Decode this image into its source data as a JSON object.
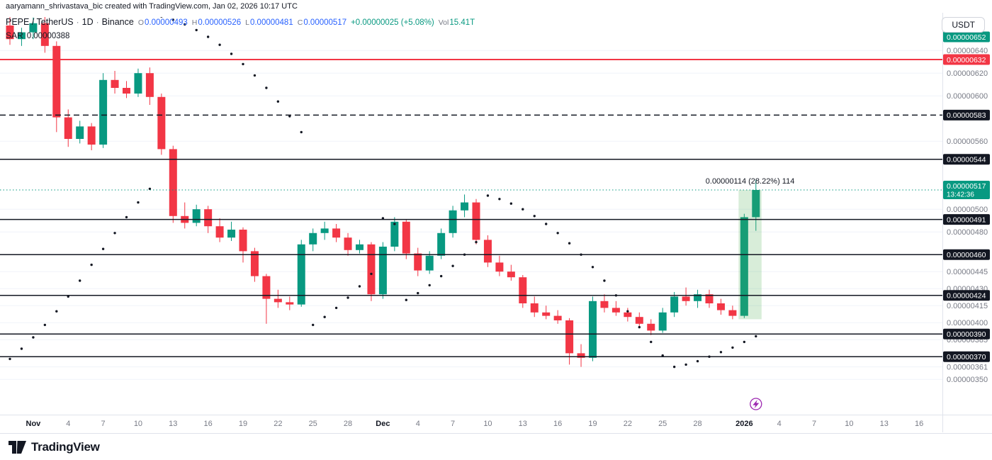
{
  "attribution": "aaryamann_shrivastava_bic created with TradingView.com, Jan 02, 2026 10:17 UTC",
  "currency_button": "USDT",
  "footer": {
    "brand": "TradingView"
  },
  "header": {
    "symbol": "PEPE / TetherUS",
    "sep": "·",
    "interval": "1D",
    "exchange": "Binance",
    "o_label": "O",
    "o": "0.00000493",
    "h_label": "H",
    "h": "0.00000526",
    "l_label": "L",
    "l": "0.00000481",
    "c_label": "C",
    "c": "0.00000517",
    "change": "+0.00000025 (+5.08%)",
    "vol_label": "Vol",
    "vol": "15.41T",
    "indicator_name": "SAR",
    "indicator_value": "0.00000388"
  },
  "colors": {
    "up": "#089981",
    "down": "#F23645",
    "ohlc_value": "#2962FF",
    "axis_text": "#787B86",
    "text_dark": "#131722",
    "badge_dark": "#131722",
    "line_red": "#F23645",
    "sar_dot": "#131722",
    "measure_fill": "rgba(76,175,80,0.22)",
    "event_purple": "#9C27B0",
    "border": "#E0E3EB",
    "grid": "#F0F3FA"
  },
  "chart_data": {
    "type": "candlestick",
    "overlay_indicator": "Parabolic SAR",
    "symbol": "PEPE/USDT",
    "interval": "1D",
    "price_unit": 1e-08,
    "quote_currency": "USDT",
    "candles_columns": [
      "date",
      "open",
      "high",
      "low",
      "close"
    ],
    "candles": [
      [
        "2025-10-30",
        662,
        672,
        645,
        650
      ],
      [
        "2025-10-31",
        650,
        660,
        644,
        656
      ],
      [
        "2025-11-01",
        656,
        669,
        650,
        664
      ],
      [
        "2025-11-02",
        664,
        674,
        638,
        644
      ],
      [
        "2025-11-03",
        644,
        648,
        568,
        581
      ],
      [
        "2025-11-04",
        581,
        588,
        555,
        562
      ],
      [
        "2025-11-05",
        562,
        578,
        558,
        573
      ],
      [
        "2025-11-06",
        573,
        576,
        552,
        557
      ],
      [
        "2025-11-07",
        557,
        620,
        554,
        614
      ],
      [
        "2025-11-08",
        614,
        622,
        602,
        607
      ],
      [
        "2025-11-09",
        607,
        613,
        598,
        602
      ],
      [
        "2025-11-10",
        602,
        624,
        599,
        620
      ],
      [
        "2025-11-11",
        620,
        625,
        592,
        599
      ],
      [
        "2025-11-12",
        599,
        602,
        548,
        553
      ],
      [
        "2025-11-13",
        553,
        556,
        488,
        494
      ],
      [
        "2025-11-14",
        494,
        506,
        483,
        488
      ],
      [
        "2025-11-15",
        488,
        504,
        485,
        500
      ],
      [
        "2025-11-16",
        500,
        503,
        479,
        485
      ],
      [
        "2025-11-17",
        485,
        492,
        471,
        475
      ],
      [
        "2025-11-18",
        475,
        489,
        472,
        482
      ],
      [
        "2025-11-19",
        482,
        484,
        453,
        463
      ],
      [
        "2025-11-20",
        463,
        466,
        436,
        441
      ],
      [
        "2025-11-21",
        441,
        443,
        399,
        421
      ],
      [
        "2025-11-22",
        421,
        429,
        413,
        418
      ],
      [
        "2025-11-23",
        418,
        423,
        411,
        416
      ],
      [
        "2025-11-24",
        416,
        473,
        414,
        469
      ],
      [
        "2025-11-25",
        469,
        483,
        463,
        479
      ],
      [
        "2025-11-26",
        479,
        489,
        473,
        483
      ],
      [
        "2025-11-27",
        483,
        487,
        471,
        475
      ],
      [
        "2025-11-28",
        475,
        479,
        459,
        464
      ],
      [
        "2025-11-29",
        464,
        473,
        461,
        469
      ],
      [
        "2025-11-30",
        469,
        471,
        419,
        425
      ],
      [
        "2025-12-01",
        425,
        471,
        421,
        467
      ],
      [
        "2025-12-02",
        467,
        493,
        463,
        489
      ],
      [
        "2025-12-03",
        489,
        491,
        456,
        461
      ],
      [
        "2025-12-04",
        461,
        466,
        441,
        446
      ],
      [
        "2025-12-05",
        446,
        463,
        443,
        459
      ],
      [
        "2025-12-06",
        459,
        483,
        456,
        479
      ],
      [
        "2025-12-07",
        479,
        503,
        475,
        499
      ],
      [
        "2025-12-08",
        499,
        513,
        493,
        506
      ],
      [
        "2025-12-09",
        506,
        509,
        469,
        473
      ],
      [
        "2025-12-10",
        473,
        477,
        449,
        453
      ],
      [
        "2025-12-11",
        453,
        459,
        441,
        445
      ],
      [
        "2025-12-12",
        445,
        451,
        437,
        440
      ],
      [
        "2025-12-13",
        440,
        442,
        413,
        417
      ],
      [
        "2025-12-14",
        417,
        423,
        405,
        409
      ],
      [
        "2025-12-15",
        409,
        415,
        403,
        406
      ],
      [
        "2025-12-16",
        406,
        411,
        399,
        402
      ],
      [
        "2025-12-17",
        402,
        404,
        363,
        373
      ],
      [
        "2025-12-18",
        373,
        381,
        361,
        369
      ],
      [
        "2025-12-19",
        369,
        423,
        366,
        419
      ],
      [
        "2025-12-20",
        419,
        425,
        409,
        413
      ],
      [
        "2025-12-21",
        413,
        419,
        406,
        409
      ],
      [
        "2025-12-22",
        409,
        413,
        401,
        405
      ],
      [
        "2025-12-23",
        405,
        409,
        395,
        399
      ],
      [
        "2025-12-24",
        399,
        403,
        389,
        393
      ],
      [
        "2025-12-25",
        393,
        413,
        391,
        409
      ],
      [
        "2025-12-26",
        409,
        427,
        405,
        423
      ],
      [
        "2025-12-27",
        423,
        431,
        415,
        419
      ],
      [
        "2025-12-28",
        419,
        429,
        413,
        425
      ],
      [
        "2025-12-29",
        425,
        429,
        413,
        417
      ],
      [
        "2025-12-30",
        417,
        421,
        407,
        411
      ],
      [
        "2025-12-31",
        411,
        415,
        403,
        406
      ],
      [
        "2026-01-01",
        406,
        496,
        404,
        493
      ],
      [
        "2026-01-02",
        493,
        526,
        481,
        517
      ]
    ],
    "sar_values": [
      368,
      377,
      387,
      398,
      410,
      423,
      437,
      451,
      465,
      479,
      493,
      506,
      518,
      670,
      667,
      663,
      658,
      652,
      645,
      637,
      628,
      618,
      607,
      595,
      582,
      568,
      398,
      405,
      413,
      422,
      432,
      443,
      492,
      487,
      420,
      426,
      433,
      441,
      450,
      460,
      471,
      512,
      509,
      505,
      500,
      494,
      487,
      479,
      470,
      460,
      449,
      437,
      424,
      410,
      396,
      383,
      371,
      361,
      363,
      366,
      370,
      374,
      378,
      383,
      388
    ],
    "horizontal_levels": [
      {
        "price": 632,
        "label": "0.00000632",
        "color": "#F23645",
        "style": "solid",
        "width": 2,
        "badge": "red"
      },
      {
        "price": 583,
        "label": "0.00000583",
        "color": "#131722",
        "style": "dashed",
        "width": 1.5,
        "badge": "dark"
      },
      {
        "price": 544,
        "label": "0.00000544",
        "color": "#131722",
        "style": "solid",
        "width": 1.5,
        "badge": "dark"
      },
      {
        "price": 491,
        "label": "0.00000491",
        "color": "#131722",
        "style": "solid",
        "width": 1.5,
        "badge": "dark"
      },
      {
        "price": 460,
        "label": "0.00000460",
        "color": "#131722",
        "style": "solid",
        "width": 1.5,
        "badge": "dark"
      },
      {
        "price": 424,
        "label": "0.00000424",
        "color": "#131722",
        "style": "solid",
        "width": 1.5,
        "badge": "dark"
      },
      {
        "price": 390,
        "label": "0.00000390",
        "color": "#131722",
        "style": "solid",
        "width": 1.5,
        "badge": "dark"
      },
      {
        "price": 370,
        "label": "0.00000370",
        "color": "#131722",
        "style": "solid",
        "width": 1.5,
        "badge": "dark"
      }
    ],
    "current_price": {
      "price": 517,
      "label": "0.00000517",
      "countdown": "13:42:36"
    },
    "upper_axis_badge": {
      "price": 652,
      "label": "0.00000652"
    },
    "y_axis_labels": [
      {
        "price": 640,
        "label": "0.00000640"
      },
      {
        "price": 620,
        "label": "0.00000620"
      },
      {
        "price": 600,
        "label": "0.00000600"
      },
      {
        "price": 560,
        "label": "0.00000560"
      },
      {
        "price": 500,
        "label": "0.00000500"
      },
      {
        "price": 480,
        "label": "0.00000480"
      },
      {
        "price": 445,
        "label": "0.00000445"
      },
      {
        "price": 430,
        "label": "0.00000430"
      },
      {
        "price": 415,
        "label": "0.00000415"
      },
      {
        "price": 400,
        "label": "0.00000400"
      },
      {
        "price": 385,
        "label": "0.00000385"
      },
      {
        "price": 361,
        "label": "0.00000361"
      },
      {
        "price": 350,
        "label": "0.00000350"
      }
    ],
    "x_ticks": [
      {
        "bar": 2,
        "label": "Nov",
        "strong": true
      },
      {
        "bar": 5,
        "label": "4"
      },
      {
        "bar": 8,
        "label": "7"
      },
      {
        "bar": 11,
        "label": "10"
      },
      {
        "bar": 14,
        "label": "13"
      },
      {
        "bar": 17,
        "label": "16"
      },
      {
        "bar": 20,
        "label": "19"
      },
      {
        "bar": 23,
        "label": "22"
      },
      {
        "bar": 26,
        "label": "25"
      },
      {
        "bar": 29,
        "label": "28"
      },
      {
        "bar": 32,
        "label": "Dec",
        "strong": true
      },
      {
        "bar": 35,
        "label": "4"
      },
      {
        "bar": 38,
        "label": "7"
      },
      {
        "bar": 41,
        "label": "10"
      },
      {
        "bar": 44,
        "label": "13"
      },
      {
        "bar": 47,
        "label": "16"
      },
      {
        "bar": 50,
        "label": "19"
      },
      {
        "bar": 53,
        "label": "22"
      },
      {
        "bar": 56,
        "label": "25"
      },
      {
        "bar": 59,
        "label": "28"
      },
      {
        "bar": 63,
        "label": "2026",
        "strong": true
      },
      {
        "bar": 66,
        "label": "4"
      },
      {
        "bar": 69,
        "label": "7"
      },
      {
        "bar": 72,
        "label": "10"
      },
      {
        "bar": 75,
        "label": "13"
      },
      {
        "bar": 78,
        "label": "16"
      }
    ],
    "measure": {
      "bar_from": 63,
      "bar_to": 64,
      "from_price": 403,
      "to_price": 517,
      "label": "0.00000114 (28.22%) 114"
    },
    "event_marker": {
      "bar": 64,
      "icon": "lightning"
    }
  }
}
